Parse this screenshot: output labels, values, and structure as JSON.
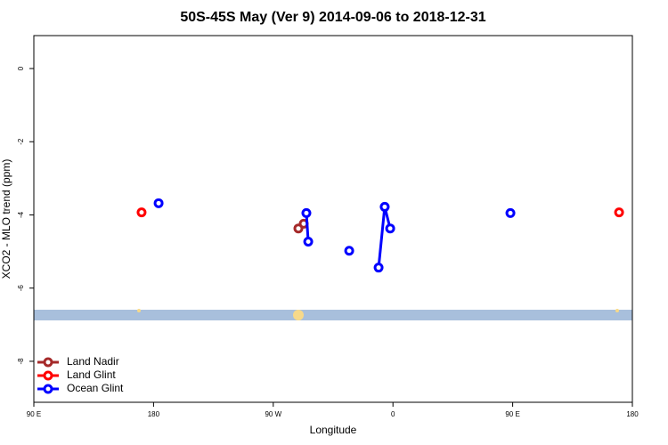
{
  "chart_data": {
    "type": "line",
    "title": "50S-45S May (Ver 9)   2014-09-06 to 2018-12-31",
    "x_label": "Longitude",
    "y_label": "XCO2 - MLO trend (ppm)",
    "xlim": [
      90,
      540
    ],
    "ylim": [
      -9.12,
      0.9
    ],
    "xticks": [
      {
        "value": 90,
        "label": "90 E"
      },
      180,
      {
        "value": 270,
        "label": "90 W"
      },
      {
        "value": 360,
        "label": "0"
      },
      {
        "value": 450,
        "label": "90 E"
      },
      {
        "value": 540,
        "label": "180"
      }
    ],
    "yticks": [
      0,
      -2,
      -4,
      -6,
      -8
    ],
    "legend": "bottom-left",
    "series": [
      {
        "name": "Land Nadir",
        "color": "#a52a2a",
        "x": [
          288.9,
          292.9
        ],
        "values": [
          -4.37,
          -4.24
        ]
      },
      {
        "name": "Land Glint",
        "color": "#ff0000",
        "x": [
          171.0,
          null,
          530.0
        ],
        "values": [
          -3.93,
          null,
          -3.93
        ]
      },
      {
        "name": "Ocean Glint",
        "color": "#0000ff",
        "x": [
          183.8,
          null,
          294.9,
          296.3,
          null,
          327.1,
          null,
          349.2,
          353.8,
          357.9,
          null,
          448.3
        ],
        "values": [
          -3.68,
          null,
          -3.95,
          -4.73,
          null,
          -4.98,
          null,
          -5.44,
          -3.78,
          -4.37,
          null,
          -3.95
        ]
      }
    ]
  }
}
